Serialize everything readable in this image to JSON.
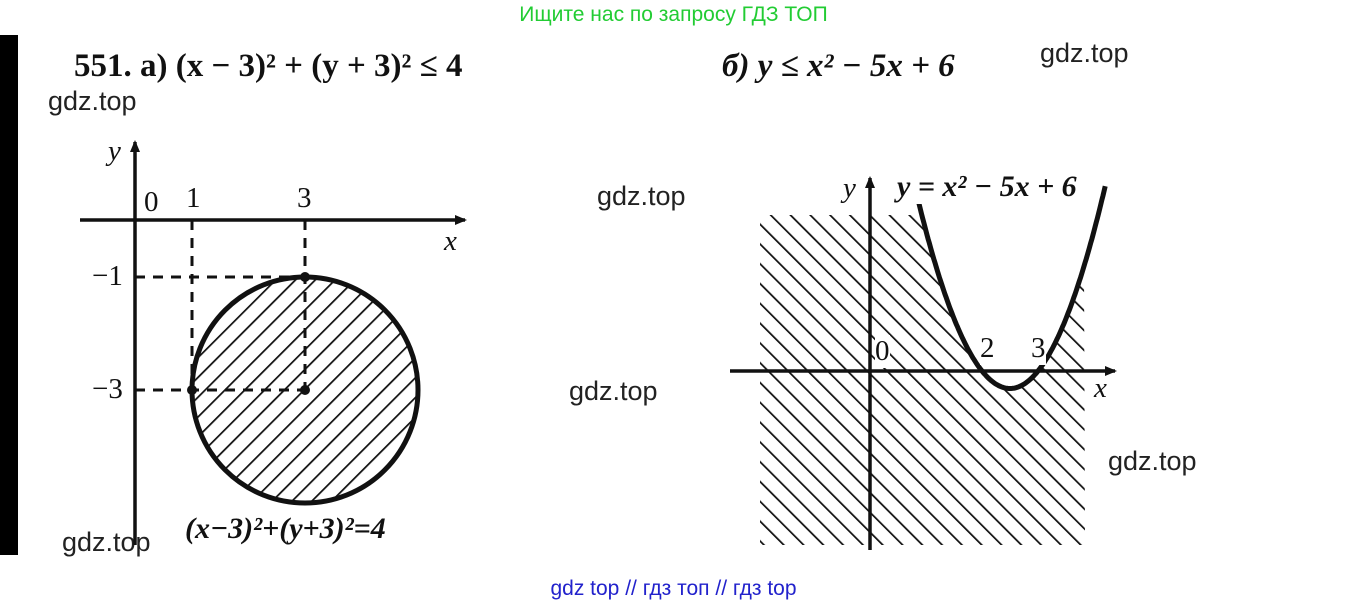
{
  "banner_top": "Ищите нас по запросу ГДЗ ТОП",
  "banner_bottom": "gdz top  //  гдз топ  //  гдз top",
  "watermark": "gdz.top",
  "problem": {
    "number": "551.",
    "part_a": "а) (x − 3)² + (y + 3)² ≤ 4",
    "part_b": "б)  y ≤ x² − 5x + 6"
  },
  "diagram_a": {
    "axis_x": "x",
    "axis_y": "y",
    "ticks_x": [
      "0",
      "1",
      "3"
    ],
    "ticks_y": [
      "−1",
      "−3"
    ],
    "curve_label": "(x−3)²+(y+3)²=4",
    "circle": {
      "center": [
        3,
        -3
      ],
      "radius": 2
    }
  },
  "diagram_b": {
    "axis_x": "x",
    "axis_y": "y",
    "ticks_x": [
      "0",
      "2",
      "3"
    ],
    "curve_label": "y = x² − 5x + 6",
    "parabola": {
      "a": 1,
      "b": -5,
      "c": 6
    }
  },
  "colors": {
    "banner_top": "#22cc33",
    "banner_bottom": "#2222cc",
    "ink": "#111111"
  }
}
